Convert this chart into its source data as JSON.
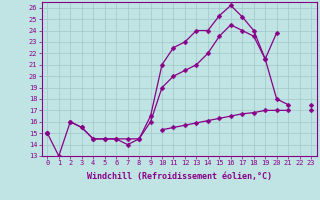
{
  "xlabel": "Windchill (Refroidissement éolien,°C)",
  "bg_color": "#c0e4e4",
  "grid_color": "#a0c8c8",
  "line_color": "#880088",
  "xlim": [
    -0.5,
    23.5
  ],
  "ylim": [
    13,
    26.5
  ],
  "xticks": [
    0,
    1,
    2,
    3,
    4,
    5,
    6,
    7,
    8,
    9,
    10,
    11,
    12,
    13,
    14,
    15,
    16,
    17,
    18,
    19,
    20,
    21,
    22,
    23
  ],
  "yticks": [
    13,
    14,
    15,
    16,
    17,
    18,
    19,
    20,
    21,
    22,
    23,
    24,
    25,
    26
  ],
  "line1_y": [
    15,
    13,
    16,
    15.5,
    14.5,
    14.5,
    14.5,
    14,
    14.5,
    16.5,
    21,
    22.5,
    23,
    24,
    24,
    25.3,
    26.2,
    25.2,
    24,
    21.5,
    18,
    17.5,
    null,
    null
  ],
  "line2_y": [
    15,
    null,
    16,
    15.5,
    14.5,
    14.5,
    14.5,
    14.5,
    14.5,
    16,
    19,
    20,
    20.5,
    21,
    22,
    23.5,
    24.5,
    24,
    23.5,
    21.5,
    23.8,
    null,
    null,
    17.5
  ],
  "line3_y": [
    15,
    null,
    null,
    null,
    null,
    null,
    null,
    null,
    null,
    null,
    15.3,
    15.5,
    15.7,
    15.9,
    16.1,
    16.3,
    16.5,
    16.7,
    16.8,
    17.0,
    17.0,
    17.0,
    null,
    17.0
  ],
  "marker_size": 2.5,
  "line_width": 0.9,
  "tick_fontsize": 5.0,
  "label_fontsize": 6.0
}
